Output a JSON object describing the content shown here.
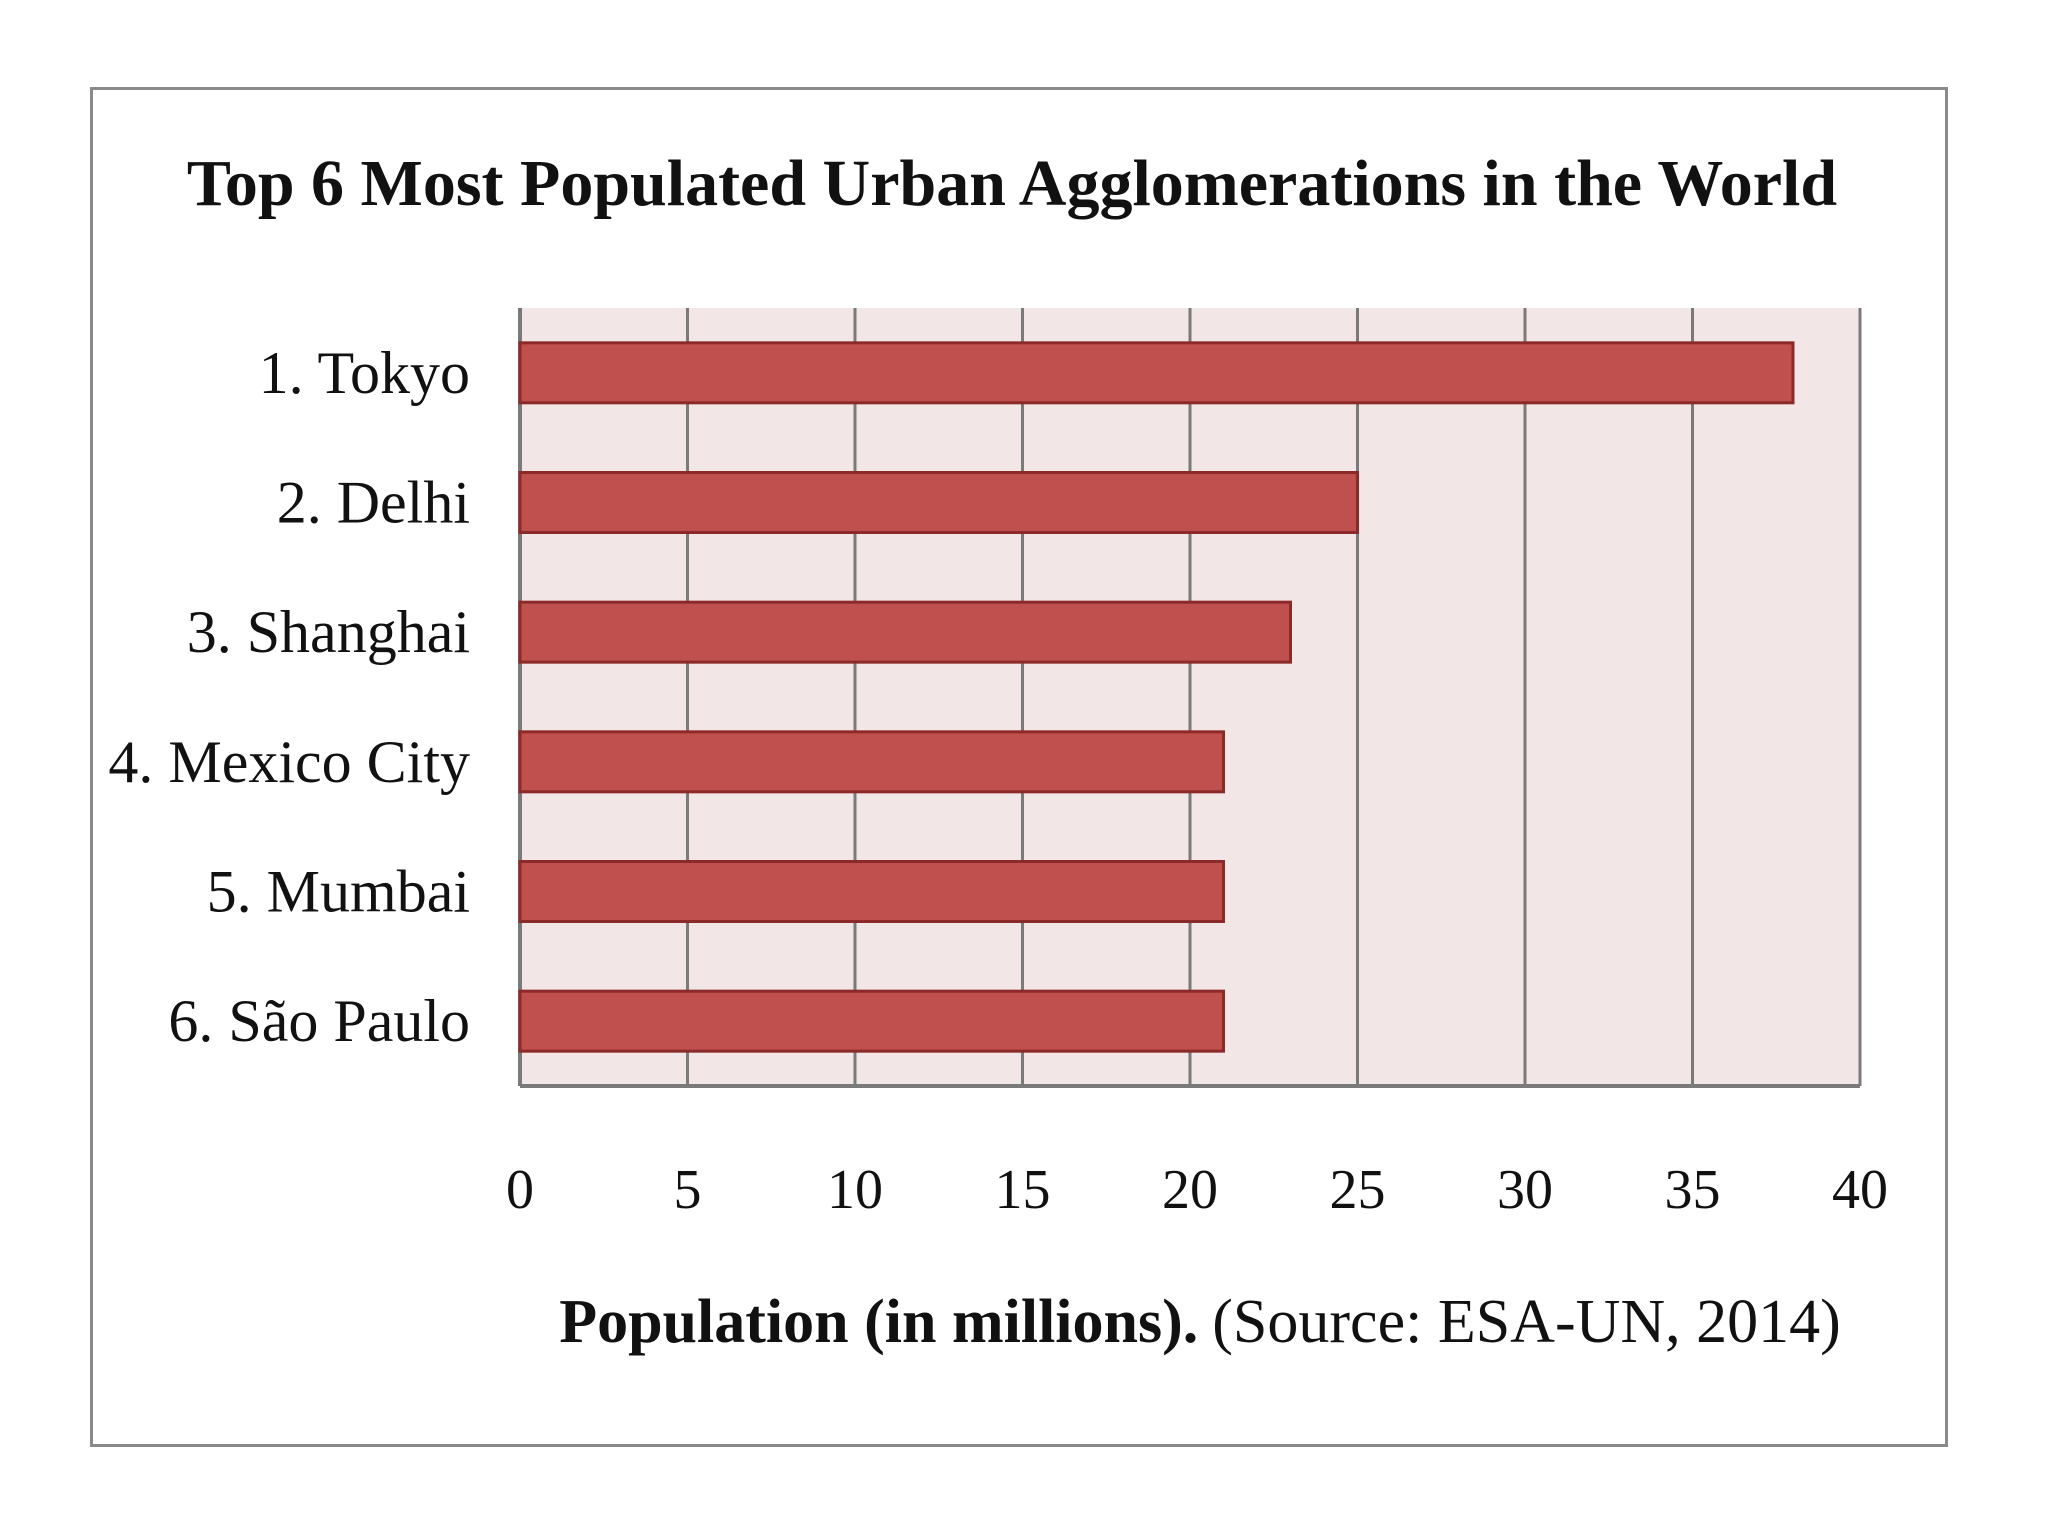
{
  "chart_data": {
    "type": "bar",
    "orientation": "horizontal",
    "title": "Top 6 Most Populated Urban Agglomerations in the World",
    "categories": [
      "1. Tokyo",
      "2. Delhi",
      "3. Shanghai",
      "4. Mexico City",
      "5. Mumbai",
      "6. São Paulo"
    ],
    "values": [
      38,
      25,
      23,
      21,
      21,
      21
    ],
    "xlabel_bold": "Population (in millions).",
    "xlabel_normal": "(Source: ESA-UN, 2014)",
    "ylabel": "",
    "xlim": [
      0,
      40
    ],
    "xticks": [
      "0",
      "5",
      "10",
      "15",
      "20",
      "25",
      "30",
      "35",
      "40"
    ],
    "grid": true,
    "legend": "none",
    "colors": {
      "bar_fill": "#c0504d",
      "bar_stroke": "#8b2a28",
      "plot_background": "#f2e6e6",
      "gridline": "#7a7a7a",
      "axis": "#7a7a7a"
    }
  }
}
